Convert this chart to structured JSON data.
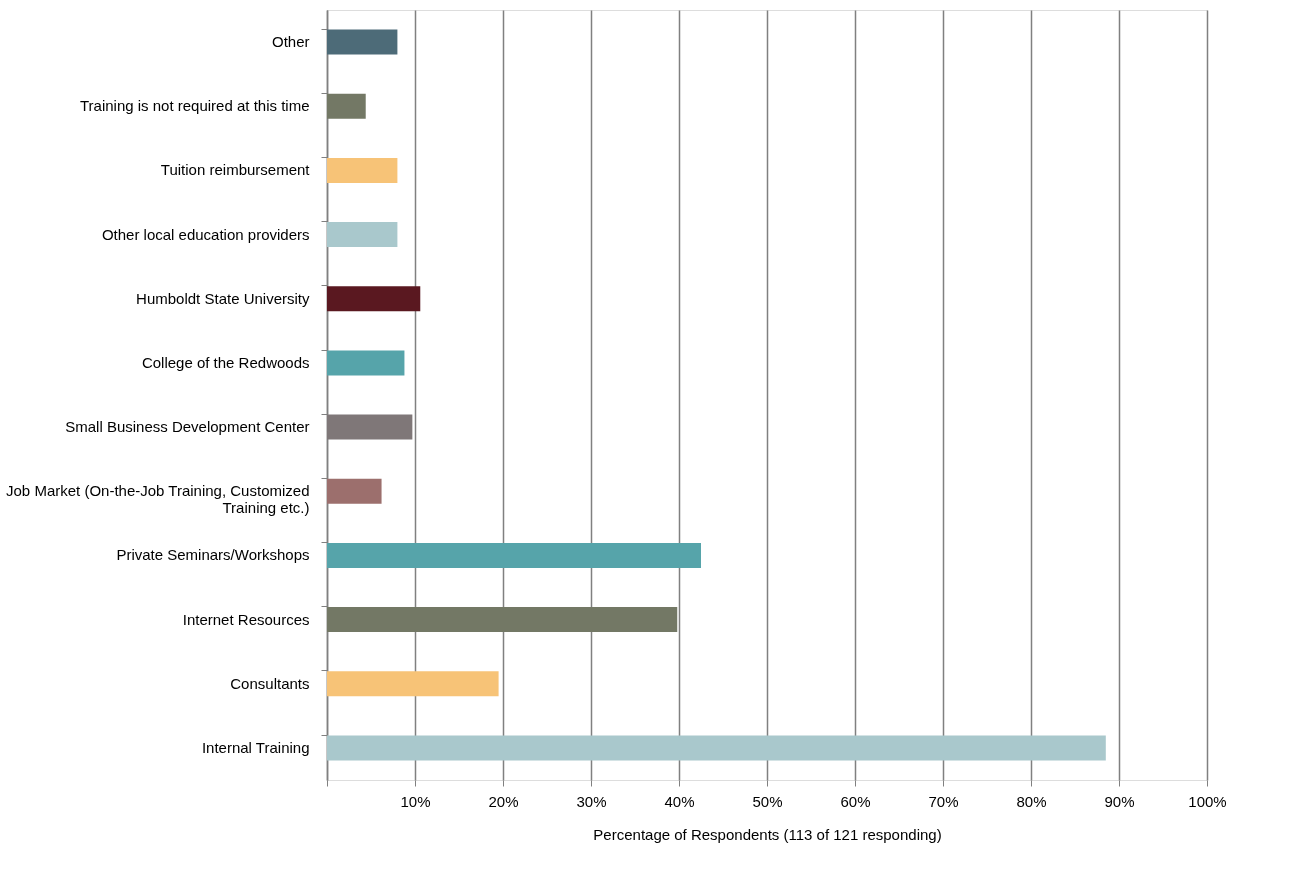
{
  "chart_data": {
    "type": "bar",
    "orientation": "horizontal",
    "xlabel": "Percentage of Respondents (113 of 121 responding)",
    "categories": [
      "Other",
      "Training is not required at this time",
      "Tuition reimbursement",
      "Other local education providers",
      "Humboldt State University",
      "College of the Redwoods",
      "Small Business Development Center",
      "Job Market (On-the-Job Training, Customized Training etc.)",
      "Private Seminars/Workshops",
      "Internet Resources",
      "Consultants",
      "Internal Training"
    ],
    "values": [
      8.0,
      4.4,
      8.0,
      8.0,
      10.6,
      8.8,
      9.7,
      6.2,
      42.5,
      39.8,
      19.5,
      88.5
    ],
    "colors": [
      "#4d6b78",
      "#737865",
      "#f7c377",
      "#a9c8cc",
      "#5a1820",
      "#56a4aa",
      "#7f7778",
      "#9c6f6d",
      "#56a4aa",
      "#737865",
      "#f7c377",
      "#a9c8cc"
    ],
    "xlim": [
      0,
      100
    ],
    "xticks": [
      {
        "value": 0,
        "label": null
      },
      {
        "value": 10,
        "label": "10%"
      },
      {
        "value": 20,
        "label": "20%"
      },
      {
        "value": 30,
        "label": "30%"
      },
      {
        "value": 40,
        "label": "40%"
      },
      {
        "value": 50,
        "label": "50%"
      },
      {
        "value": 60,
        "label": "60%"
      },
      {
        "value": 70,
        "label": "70%"
      },
      {
        "value": 80,
        "label": "80%"
      },
      {
        "value": 90,
        "label": "90%"
      },
      {
        "value": 100,
        "label": "100%"
      }
    ],
    "grid": "x"
  }
}
